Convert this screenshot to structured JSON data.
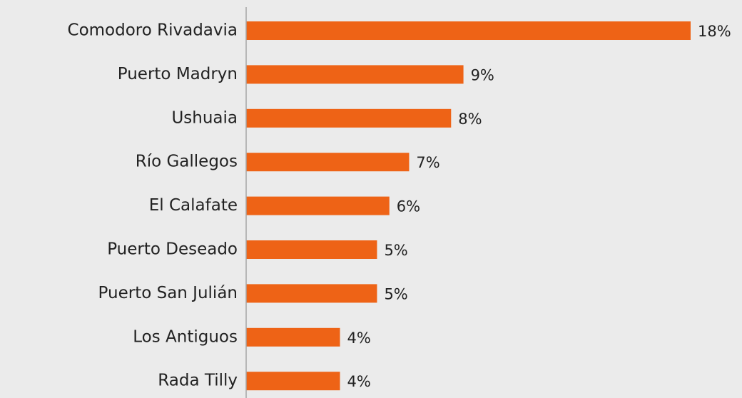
{
  "chart_data": {
    "type": "bar",
    "orientation": "horizontal",
    "categories": [
      "Comodoro Rivadavia",
      "Puerto Madryn",
      "Ushuaia",
      "Río Gallegos",
      "El Calafate",
      "Puerto Deseado",
      "Puerto San Julián",
      "Los Antiguos",
      "Rada Tilly"
    ],
    "values": [
      18,
      8.8,
      8.3,
      6.6,
      5.8,
      5.3,
      5.3,
      3.8,
      3.8
    ],
    "value_labels": [
      "18%",
      "9%",
      "8%",
      "7%",
      "6%",
      "5%",
      "5%",
      "4%",
      "4%"
    ],
    "color": "#ee6316"
  }
}
